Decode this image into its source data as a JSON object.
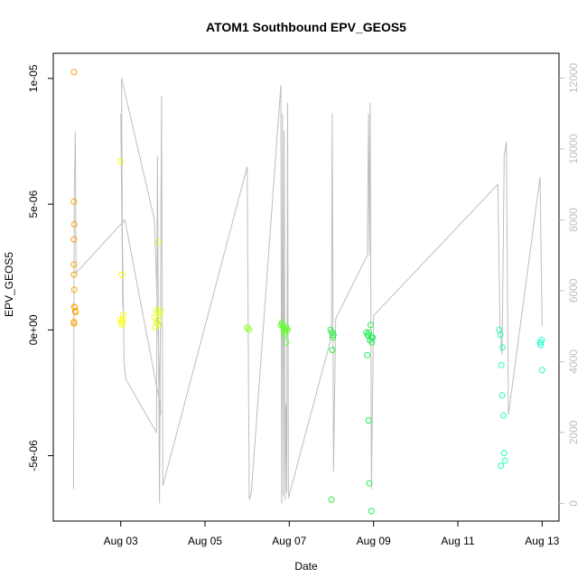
{
  "chart_data": {
    "type": "scatter",
    "title": "ATOM1 Southbound EPV_GEOS5",
    "xlabel": "Date",
    "ylabel": "EPV_GEOS5",
    "x_ticks": [
      "Aug 03",
      "Aug 05",
      "Aug 07",
      "Aug 09",
      "Aug 11",
      "Aug 13"
    ],
    "x_tick_values": [
      3,
      5,
      7,
      9,
      11,
      13
    ],
    "xlim": [
      1.4,
      13.4
    ],
    "y_ticks": [
      "-5e-06",
      "0e+00",
      "5e-06",
      "1e-05"
    ],
    "y_tick_values": [
      -5e-06,
      0,
      5e-06,
      1e-05
    ],
    "ylim": [
      -7.6e-06,
      1.1e-05
    ],
    "right_axis": {
      "ticks": [
        "0",
        "2000",
        "4000",
        "6000",
        "8000",
        "10000",
        "12000"
      ],
      "values": [
        0,
        2000,
        4000,
        6000,
        8000,
        10000,
        12000
      ],
      "ylim": [
        -500,
        12700
      ],
      "color": "#bebebe"
    },
    "altitude_line_color": "#bebebe",
    "series": [
      {
        "color": "#FFA500",
        "x": [
          1.89,
          1.89,
          1.9,
          1.89,
          1.89,
          1.89,
          1.9,
          1.91,
          1.92,
          1.93,
          1.9,
          1.89,
          1.89
        ],
        "y": [
          1.025e-05,
          5.1e-06,
          4.2e-06,
          3.6e-06,
          2.6e-06,
          2.2e-06,
          1.6e-06,
          9e-07,
          7.5e-07,
          7e-07,
          9.2e-07,
          3.2e-07,
          2.5e-07
        ]
      },
      {
        "color": "#FFFF00",
        "x": [
          3.0,
          3.03,
          3.0,
          3.05,
          3.02,
          3.03,
          3.06
        ],
        "y": [
          6.7e-06,
          2.2e-06,
          4e-07,
          4e-07,
          3e-07,
          2e-07,
          6e-07
        ]
      },
      {
        "color": "#E6FF2E",
        "x": [
          3.8,
          3.84,
          3.88,
          3.92,
          3.86,
          3.9,
          3.95,
          3.82,
          3.85,
          3.9,
          3.93,
          3.88
        ],
        "y": [
          5e-07,
          8e-07,
          7e-07,
          6e-07,
          3e-07,
          2e-07,
          8e-07,
          1e-07,
          3e-07,
          3.5e-06,
          6e-07,
          4e-07
        ]
      },
      {
        "color": "#A0FF40",
        "x": [
          6.0,
          6.02,
          6.05
        ],
        "y": [
          1e-07,
          5e-08,
          0
        ]
      },
      {
        "color": "#66FF33",
        "x": [
          6.8,
          6.83,
          6.86,
          6.9,
          6.95,
          6.88,
          6.92,
          6.84,
          6.87,
          6.93,
          6.89,
          6.96
        ],
        "y": [
          2e-07,
          3e-07,
          1e-07,
          0,
          0,
          -1e-07,
          -5e-07,
          2e-07,
          0,
          1e-07,
          -2e-07,
          0
        ]
      },
      {
        "color": "#22EE44",
        "x": [
          7.98,
          8.0,
          8.03,
          8.05,
          8.02,
          8.01
        ],
        "y": [
          0,
          -6.75e-06,
          -3e-07,
          -2e-07,
          -8e-07,
          -1e-07
        ]
      },
      {
        "color": "#22EE55",
        "x": [
          8.83,
          8.85,
          8.88,
          8.9,
          8.93,
          8.95,
          8.98,
          8.87,
          8.91,
          8.94,
          8.96,
          8.86,
          8.89,
          8.97
        ],
        "y": [
          -1e-07,
          -1e-06,
          -3.6e-06,
          -6.1e-06,
          2e-07,
          -7.2e-06,
          -3e-07,
          -2e-07,
          -4e-07,
          -3e-07,
          -5e-07,
          -2e-07,
          -1e-07,
          -3e-07
        ],
        "note_only_visible": true
      },
      {
        "color": "#22FFAA",
        "x": [
          11.98,
          12.01,
          12.03,
          12.05,
          12.08,
          12.1,
          12.12,
          12.02,
          12.06
        ],
        "y": [
          0,
          -2e-07,
          -1.4e-06,
          -2.6e-06,
          -3.4e-06,
          -4.9e-06,
          -5.2e-06,
          -5.4e-06,
          -7e-07
        ]
      },
      {
        "color": "#22FFCC",
        "x": [
          12.95,
          12.97,
          12.99,
          13.0,
          12.96
        ],
        "y": [
          -5e-07,
          -6e-07,
          -4e-07,
          -1.6e-06,
          -5e-07
        ]
      }
    ],
    "altitude_line": {
      "x": [
        1.88,
        1.88,
        1.9,
        1.91,
        1.92,
        1.93,
        1.94,
        3.1,
        3.9,
        3.95,
        3.8,
        3.02,
        3.05,
        3.0,
        3.08,
        3.12,
        3.85,
        3.87,
        3.92,
        3.97,
        4.0,
        6.0,
        6.05,
        6.1,
        6.8,
        6.82,
        6.84,
        6.86,
        6.88,
        6.9,
        6.92,
        6.94,
        6.96,
        6.98,
        8.0,
        8.02,
        8.05,
        8.1,
        8.85,
        8.88,
        8.9,
        8.92,
        8.95,
        9.0,
        11.95,
        12.0,
        12.05,
        12.1,
        12.15,
        12.2,
        12.95,
        13.0
      ],
      "y": [
        800,
        400,
        9000,
        9500,
        10500,
        9000,
        6500,
        8000,
        3000,
        2500,
        8000,
        12000,
        5500,
        11000,
        4000,
        3500,
        2000,
        9800,
        0,
        11500,
        500,
        9500,
        100,
        300,
        11800,
        0,
        11000,
        200,
        10500,
        100,
        2800,
        300,
        11300,
        150,
        4700,
        11000,
        900,
        5200,
        7000,
        11000,
        7000,
        11300,
        400,
        5300,
        9000,
        5000,
        4200,
        9800,
        10200,
        2500,
        9200,
        5000
      ]
    }
  }
}
